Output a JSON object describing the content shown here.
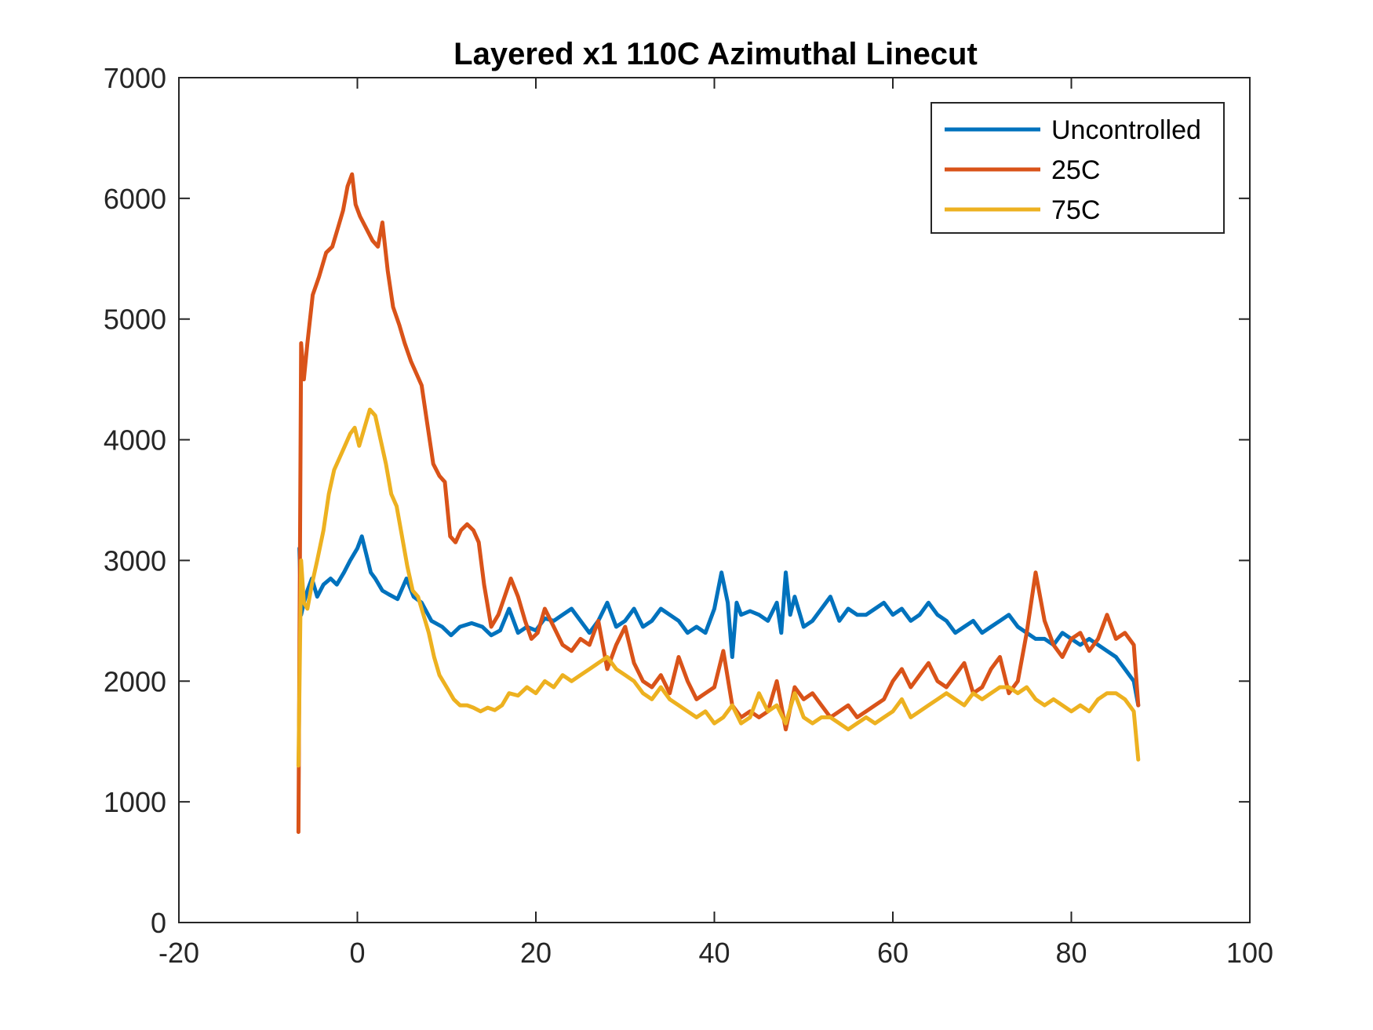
{
  "chart_data": {
    "type": "line",
    "title": "Layered x1 110C Azimuthal Linecut",
    "xlabel": "",
    "ylabel": "",
    "xlim": [
      -20,
      100
    ],
    "ylim": [
      0,
      7000
    ],
    "x_ticks": [
      -20,
      0,
      20,
      40,
      60,
      80,
      100
    ],
    "y_ticks": [
      0,
      1000,
      2000,
      3000,
      4000,
      5000,
      6000,
      7000
    ],
    "x_tick_labels": [
      "-20",
      "0",
      "20",
      "40",
      "60",
      "80",
      "100"
    ],
    "y_tick_labels": [
      "0",
      "1000",
      "2000",
      "3000",
      "4000",
      "5000",
      "6000",
      "7000"
    ],
    "grid": false,
    "legend_position": "top-right",
    "series": [
      {
        "name": "Uncontrolled",
        "color": "#0072BD",
        "x": [
          -6.5,
          -6.3,
          -6,
          -5.6,
          -5.1,
          -4.5,
          -3.8,
          -3,
          -2.3,
          -1.5,
          -0.8,
          0,
          0.5,
          1,
          1.5,
          2,
          2.8,
          3.5,
          4.5,
          5.5,
          6.3,
          7.2,
          8.3,
          9.5,
          10.5,
          11.5,
          12.8,
          14,
          15,
          16,
          17,
          18,
          19,
          20,
          21,
          22,
          23,
          24,
          25,
          26,
          27,
          28,
          29,
          30,
          31,
          32,
          33,
          34,
          35,
          36,
          37,
          38,
          39,
          40,
          40.8,
          41.5,
          42,
          42.5,
          43,
          44,
          45,
          46,
          47,
          47.5,
          48,
          48.5,
          49,
          50,
          51,
          52,
          53,
          54,
          55,
          56,
          57,
          58,
          59,
          60,
          61,
          62,
          63,
          64,
          65,
          66,
          67,
          68,
          69,
          70,
          71,
          72,
          73,
          74,
          75,
          76,
          77,
          78,
          79,
          80,
          81,
          82,
          83,
          84,
          85,
          86,
          87,
          87.5
        ],
        "y": [
          3100,
          2550,
          2650,
          2750,
          2850,
          2700,
          2800,
          2850,
          2800,
          2900,
          3000,
          3100,
          3200,
          3050,
          2900,
          2850,
          2750,
          2720,
          2680,
          2850,
          2700,
          2650,
          2500,
          2450,
          2380,
          2450,
          2480,
          2450,
          2380,
          2420,
          2600,
          2400,
          2450,
          2420,
          2520,
          2500,
          2550,
          2600,
          2500,
          2400,
          2500,
          2650,
          2450,
          2500,
          2600,
          2450,
          2500,
          2600,
          2550,
          2500,
          2400,
          2450,
          2400,
          2600,
          2900,
          2650,
          2200,
          2650,
          2550,
          2580,
          2550,
          2500,
          2650,
          2400,
          2900,
          2550,
          2700,
          2450,
          2500,
          2600,
          2700,
          2500,
          2600,
          2550,
          2550,
          2600,
          2650,
          2550,
          2600,
          2500,
          2550,
          2650,
          2550,
          2500,
          2400,
          2450,
          2500,
          2400,
          2450,
          2500,
          2550,
          2450,
          2400,
          2350,
          2350,
          2300,
          2400,
          2350,
          2300,
          2350,
          2300,
          2250,
          2200,
          2100,
          2000,
          1800
        ]
      },
      {
        "name": "25C",
        "color": "#D95319",
        "x": [
          -6.6,
          -6.3,
          -6,
          -5.6,
          -5,
          -4.3,
          -3.5,
          -2.8,
          -2.2,
          -1.6,
          -1.1,
          -0.6,
          -0.2,
          0.3,
          1,
          1.7,
          2.3,
          2.8,
          3.4,
          4,
          4.7,
          5.3,
          6,
          6.6,
          7.2,
          7.8,
          8.5,
          9.2,
          9.8,
          10.4,
          11,
          11.6,
          12.3,
          13,
          13.6,
          14.2,
          15,
          15.8,
          16.5,
          17.2,
          18,
          18.8,
          19.5,
          20.2,
          21,
          22,
          23,
          24,
          25,
          26,
          27,
          28,
          29,
          30,
          31,
          32,
          33,
          34,
          35,
          36,
          37,
          38,
          39,
          40,
          41,
          42,
          43,
          44,
          45,
          46,
          47,
          48,
          49,
          50,
          51,
          52,
          53,
          54,
          55,
          56,
          57,
          58,
          59,
          60,
          61,
          62,
          63,
          64,
          65,
          66,
          67,
          68,
          69,
          70,
          71,
          72,
          73,
          74,
          75,
          76,
          77,
          78,
          79,
          80,
          81,
          82,
          83,
          84,
          85,
          86,
          87,
          87.5
        ],
        "y": [
          750,
          4800,
          4500,
          4800,
          5200,
          5350,
          5550,
          5600,
          5750,
          5900,
          6100,
          6200,
          5950,
          5850,
          5750,
          5650,
          5600,
          5800,
          5400,
          5100,
          4950,
          4800,
          4650,
          4550,
          4450,
          4150,
          3800,
          3700,
          3650,
          3200,
          3150,
          3250,
          3300,
          3250,
          3150,
          2800,
          2450,
          2550,
          2700,
          2850,
          2700,
          2500,
          2350,
          2400,
          2600,
          2450,
          2300,
          2250,
          2350,
          2300,
          2500,
          2100,
          2300,
          2450,
          2150,
          2000,
          1950,
          2050,
          1900,
          2200,
          2000,
          1850,
          1900,
          1950,
          2250,
          1800,
          1700,
          1750,
          1700,
          1750,
          2000,
          1600,
          1950,
          1850,
          1900,
          1800,
          1700,
          1750,
          1800,
          1700,
          1750,
          1800,
          1850,
          2000,
          2100,
          1950,
          2050,
          2150,
          2000,
          1950,
          2050,
          2150,
          1900,
          1950,
          2100,
          2200,
          1900,
          2000,
          2400,
          2900,
          2500,
          2300,
          2200,
          2350,
          2400,
          2250,
          2350,
          2550,
          2350,
          2400,
          2300,
          1800
        ]
      },
      {
        "name": "75C",
        "color": "#EDB120",
        "x": [
          -6.6,
          -6.3,
          -6,
          -5.6,
          -5.1,
          -4.5,
          -3.8,
          -3.2,
          -2.6,
          -2,
          -1.4,
          -0.8,
          -0.3,
          0.2,
          0.8,
          1.4,
          2,
          2.6,
          3.2,
          3.8,
          4.4,
          5,
          5.6,
          6.2,
          6.8,
          7.4,
          8,
          8.6,
          9.2,
          10,
          10.8,
          11.5,
          12.3,
          13,
          13.8,
          14.6,
          15.4,
          16.2,
          17,
          18,
          19,
          20,
          21,
          22,
          23,
          24,
          25,
          26,
          27,
          28,
          29,
          30,
          31,
          32,
          33,
          34,
          35,
          36,
          37,
          38,
          39,
          40,
          41,
          42,
          43,
          44,
          45,
          46,
          47,
          48,
          49,
          50,
          51,
          52,
          53,
          54,
          55,
          56,
          57,
          58,
          59,
          60,
          61,
          62,
          63,
          64,
          65,
          66,
          67,
          68,
          69,
          70,
          71,
          72,
          73,
          74,
          75,
          76,
          77,
          78,
          79,
          80,
          81,
          82,
          83,
          84,
          85,
          86,
          87,
          87.5
        ],
        "y": [
          1300,
          3000,
          2650,
          2600,
          2800,
          3000,
          3250,
          3550,
          3750,
          3850,
          3950,
          4050,
          4100,
          3950,
          4100,
          4250,
          4200,
          4000,
          3800,
          3550,
          3450,
          3200,
          2950,
          2750,
          2700,
          2550,
          2400,
          2200,
          2050,
          1950,
          1850,
          1800,
          1800,
          1780,
          1750,
          1780,
          1760,
          1800,
          1900,
          1880,
          1950,
          1900,
          2000,
          1950,
          2050,
          2000,
          2050,
          2100,
          2150,
          2200,
          2100,
          2050,
          2000,
          1900,
          1850,
          1950,
          1850,
          1800,
          1750,
          1700,
          1750,
          1650,
          1700,
          1800,
          1650,
          1700,
          1900,
          1750,
          1800,
          1650,
          1900,
          1700,
          1650,
          1700,
          1700,
          1650,
          1600,
          1650,
          1700,
          1650,
          1700,
          1750,
          1850,
          1700,
          1750,
          1800,
          1850,
          1900,
          1850,
          1800,
          1900,
          1850,
          1900,
          1950,
          1950,
          1900,
          1950,
          1850,
          1800,
          1850,
          1800,
          1750,
          1800,
          1750,
          1850,
          1900,
          1900,
          1850,
          1750,
          1350
        ]
      }
    ]
  }
}
